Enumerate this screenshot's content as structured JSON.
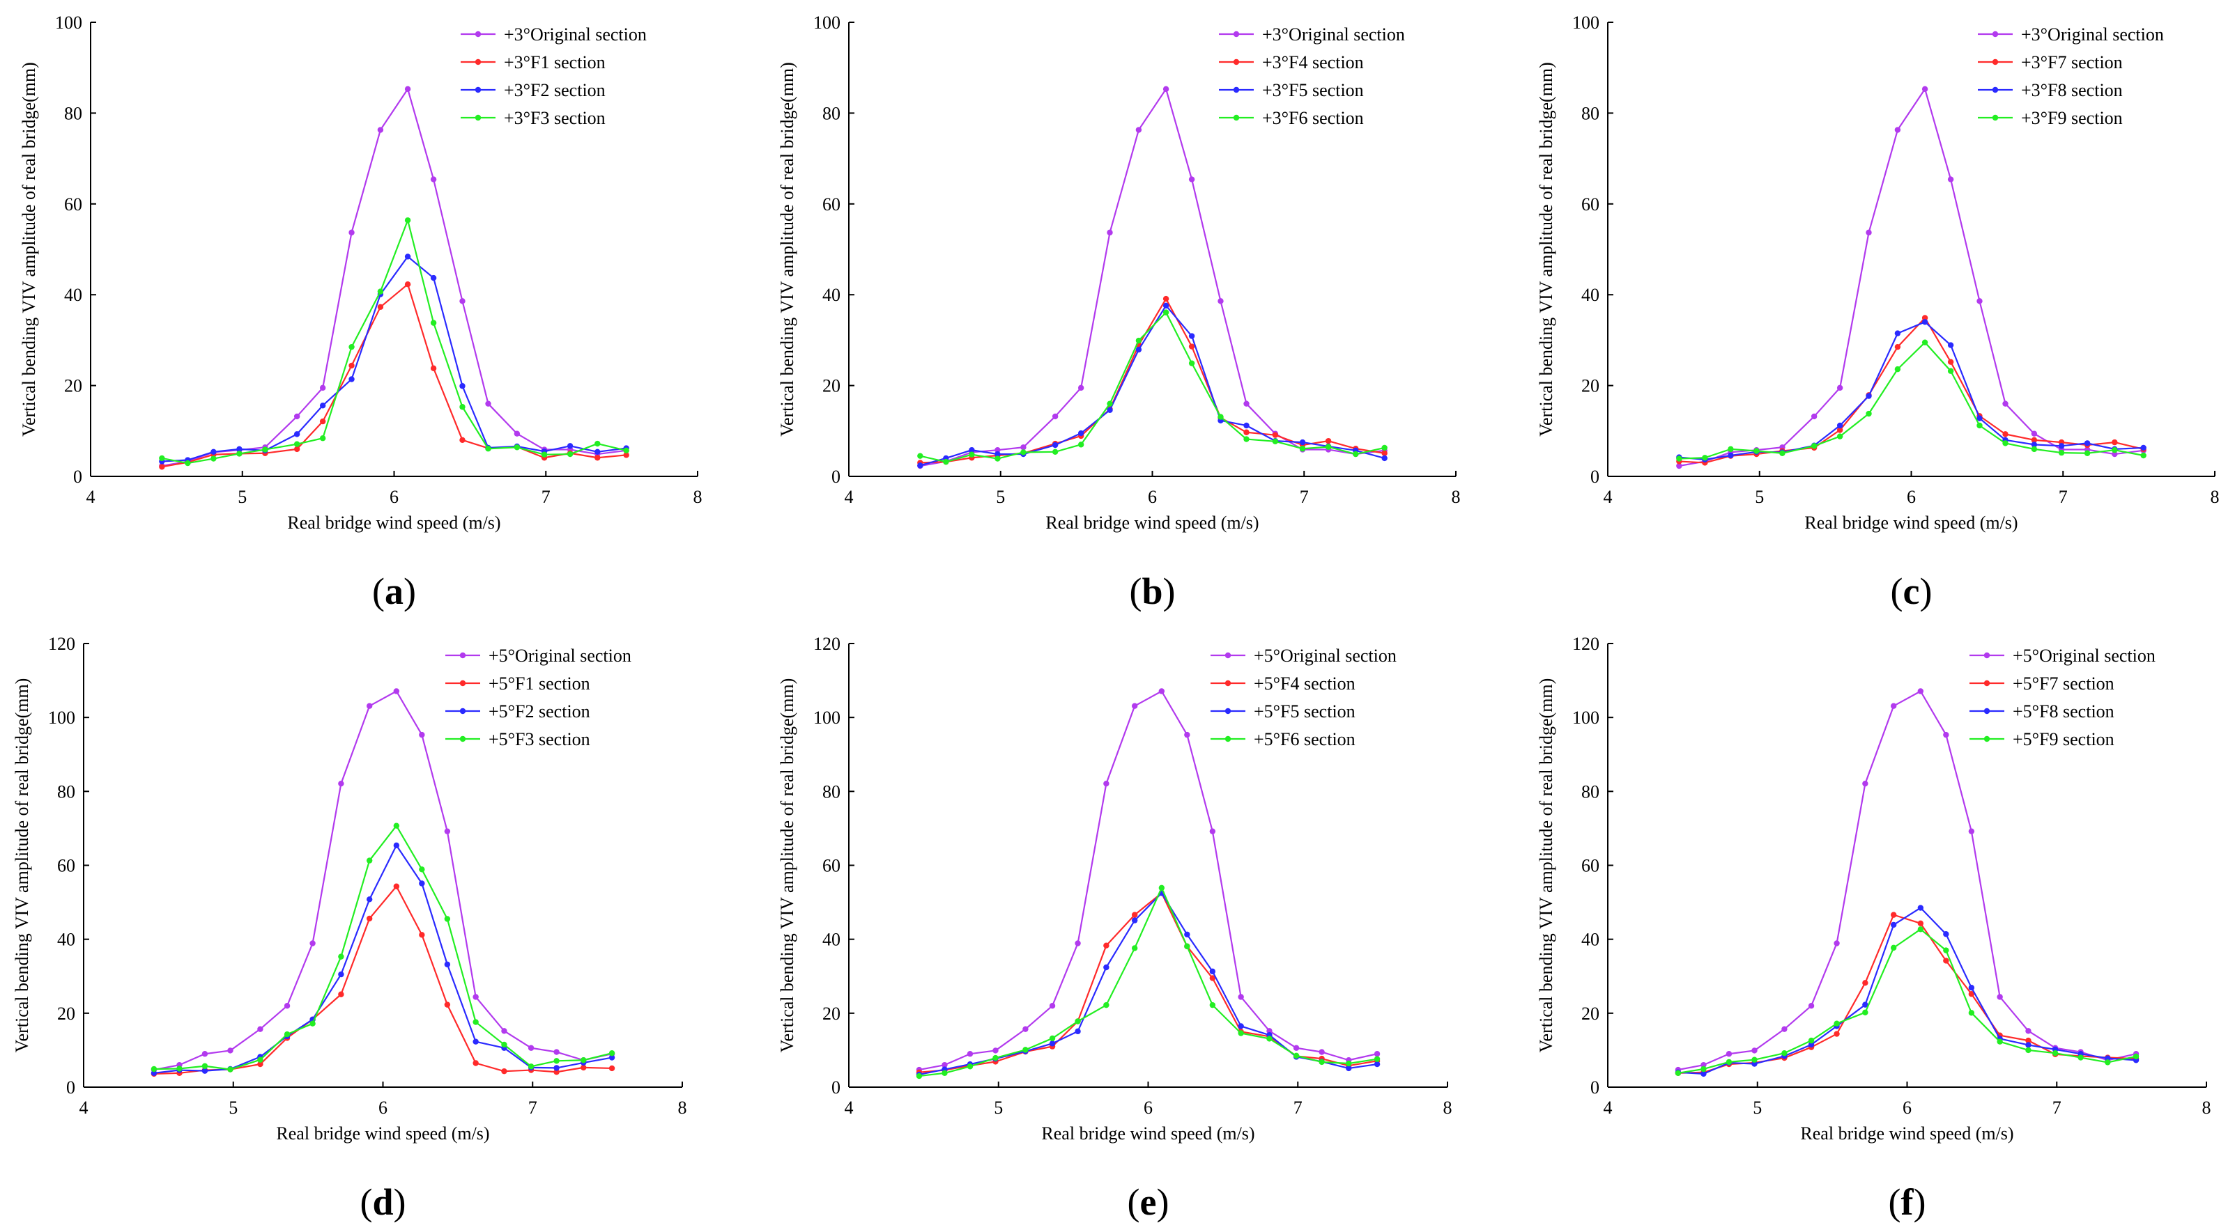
{
  "chart_data": [
    {
      "panel": "a",
      "type": "line",
      "xlabel": "Real bridge wind speed (m/s)",
      "ylabel": "Vertical bending VIV amplitude of real bridge(mm)",
      "xlim": [
        4,
        8
      ],
      "ylim": [
        0,
        100
      ],
      "xticks": [
        4,
        5,
        6,
        7,
        8
      ],
      "yticks": [
        0,
        20,
        40,
        60,
        80,
        100
      ],
      "x": [
        4.47,
        4.64,
        4.81,
        4.98,
        5.15,
        5.36,
        5.53,
        5.72,
        5.91,
        6.09,
        6.26,
        6.45,
        6.62,
        6.81,
        6.99,
        7.16,
        7.34,
        7.53
      ],
      "legend_position": "top-right",
      "series": [
        {
          "name": "+3°Original section",
          "color": "#B23AEE",
          "values": [
            2.3,
            3.3,
            5.3,
            5.8,
            6.4,
            13.2,
            19.5,
            53.7,
            76.3,
            85.3,
            65.4,
            38.6,
            16.0,
            9.4,
            5.9,
            5.9,
            4.9,
            5.7
          ]
        },
        {
          "name": "+3°F1 section",
          "color": "#FF2A2A",
          "values": [
            2.1,
            3.1,
            4.8,
            5.0,
            5.1,
            6.0,
            12.1,
            24.4,
            37.3,
            42.3,
            23.8,
            8.0,
            6.2,
            6.5,
            4.1,
            5.1,
            4.1,
            4.7
          ]
        },
        {
          "name": "+3°F2 section",
          "color": "#2A2AFF",
          "values": [
            3.3,
            3.6,
            5.4,
            6.0,
            5.7,
            9.3,
            15.6,
            21.4,
            40.1,
            48.4,
            43.7,
            19.9,
            6.3,
            6.6,
            5.5,
            6.7,
            5.4,
            6.2
          ]
        },
        {
          "name": "+3°F3 section",
          "color": "#22EE22",
          "values": [
            4.0,
            2.9,
            3.9,
            5.0,
            5.9,
            7.1,
            8.4,
            28.5,
            40.7,
            56.4,
            33.8,
            15.3,
            6.1,
            6.4,
            4.8,
            4.9,
            7.2,
            5.7
          ]
        }
      ]
    },
    {
      "panel": "b",
      "type": "line",
      "xlabel": "Real bridge wind speed (m/s)",
      "ylabel": "Vertical bending VIV amplitude of real bridge(mm)",
      "xlim": [
        4,
        8
      ],
      "ylim": [
        0,
        100
      ],
      "xticks": [
        4,
        5,
        6,
        7,
        8
      ],
      "yticks": [
        0,
        20,
        40,
        60,
        80,
        100
      ],
      "x": [
        4.47,
        4.64,
        4.81,
        4.98,
        5.15,
        5.36,
        5.53,
        5.72,
        5.91,
        6.09,
        6.26,
        6.45,
        6.62,
        6.81,
        6.99,
        7.16,
        7.34,
        7.53
      ],
      "legend_position": "top-right",
      "series": [
        {
          "name": "+3°Original section",
          "color": "#B23AEE",
          "values": [
            2.3,
            3.3,
            5.3,
            5.8,
            6.4,
            13.2,
            19.5,
            53.7,
            76.3,
            85.3,
            65.4,
            38.6,
            16.0,
            9.4,
            5.9,
            5.9,
            4.9,
            5.7
          ]
        },
        {
          "name": "+3°F4 section",
          "color": "#FF2A2A",
          "values": [
            3.0,
            3.2,
            4.1,
            4.6,
            5.1,
            7.2,
            8.9,
            14.8,
            28.9,
            39.1,
            28.6,
            12.9,
            9.7,
            9.1,
            6.9,
            7.8,
            6.1,
            5.1
          ]
        },
        {
          "name": "+3°F5 section",
          "color": "#2A2AFF",
          "values": [
            2.4,
            4.0,
            5.8,
            4.9,
            4.9,
            6.9,
            9.5,
            14.6,
            27.9,
            37.6,
            30.9,
            12.3,
            11.2,
            7.8,
            7.5,
            6.6,
            5.7,
            4.0
          ]
        },
        {
          "name": "+3°F6 section",
          "color": "#22EE22",
          "values": [
            4.5,
            3.2,
            4.8,
            3.9,
            5.3,
            5.4,
            7.0,
            16.0,
            29.9,
            36.1,
            24.9,
            13.1,
            8.2,
            7.7,
            6.1,
            6.5,
            4.9,
            6.3
          ]
        }
      ]
    },
    {
      "panel": "c",
      "type": "line",
      "xlabel": "Real bridge wind speed (m/s)",
      "ylabel": "Vertical bending VIV amplitude of real bridge(mm)",
      "xlim": [
        4,
        8
      ],
      "ylim": [
        0,
        100
      ],
      "xticks": [
        4,
        5,
        6,
        7,
        8
      ],
      "yticks": [
        0,
        20,
        40,
        60,
        80,
        100
      ],
      "x": [
        4.47,
        4.64,
        4.81,
        4.98,
        5.15,
        5.36,
        5.53,
        5.72,
        5.91,
        6.09,
        6.26,
        6.45,
        6.62,
        6.81,
        6.99,
        7.16,
        7.34,
        7.53
      ],
      "legend_position": "top-right",
      "series": [
        {
          "name": "+3°Original section",
          "color": "#B23AEE",
          "values": [
            2.3,
            3.3,
            5.3,
            5.8,
            6.4,
            13.2,
            19.5,
            53.7,
            76.3,
            85.3,
            65.4,
            38.6,
            16.0,
            9.4,
            5.9,
            5.9,
            4.9,
            5.7
          ]
        },
        {
          "name": "+3°F7 section",
          "color": "#FF2A2A",
          "values": [
            3.3,
            3.0,
            4.5,
            4.9,
            5.6,
            6.3,
            10.2,
            17.9,
            28.5,
            34.9,
            25.2,
            13.3,
            9.3,
            8.0,
            7.5,
            6.9,
            7.5,
            6.0
          ]
        },
        {
          "name": "+3°F8 section",
          "color": "#2A2AFF",
          "values": [
            4.2,
            3.7,
            4.6,
            5.4,
            5.3,
            6.8,
            11.2,
            17.7,
            31.5,
            34.0,
            28.9,
            12.8,
            8.0,
            7.0,
            6.7,
            7.3,
            6.0,
            6.3
          ]
        },
        {
          "name": "+3°F9 section",
          "color": "#22EE22",
          "values": [
            3.9,
            4.1,
            6.0,
            5.6,
            5.1,
            6.7,
            8.8,
            13.8,
            23.6,
            29.5,
            23.2,
            11.2,
            7.3,
            6.0,
            5.2,
            5.1,
            5.8,
            4.6
          ]
        }
      ]
    },
    {
      "panel": "d",
      "type": "line",
      "xlabel": "Real bridge wind speed (m/s)",
      "ylabel": "Vertical bending VIV amplitude of real bridge(mm)",
      "xlim": [
        4,
        8
      ],
      "ylim": [
        0,
        120
      ],
      "xticks": [
        4,
        5,
        6,
        7,
        8
      ],
      "yticks": [
        0,
        20,
        40,
        60,
        80,
        100,
        120
      ],
      "x": [
        4.47,
        4.64,
        4.81,
        4.98,
        5.18,
        5.36,
        5.53,
        5.72,
        5.91,
        6.09,
        6.26,
        6.43,
        6.62,
        6.81,
        6.99,
        7.16,
        7.34,
        7.53
      ],
      "legend_position": "top-right",
      "series": [
        {
          "name": "+5°Original section",
          "color": "#B23AEE",
          "values": [
            4.7,
            6.0,
            9.0,
            9.9,
            15.7,
            22.0,
            38.9,
            82.1,
            103.1,
            107.1,
            95.3,
            69.2,
            24.4,
            15.2,
            10.6,
            9.5,
            7.3,
            9.0
          ]
        },
        {
          "name": "+5°F1 section",
          "color": "#FF2A2A",
          "values": [
            3.6,
            3.8,
            4.6,
            4.8,
            6.2,
            13.3,
            18.3,
            25.1,
            45.6,
            54.3,
            41.2,
            22.3,
            6.5,
            4.3,
            4.6,
            4.1,
            5.3,
            5.1
          ]
        },
        {
          "name": "+5°F2 section",
          "color": "#2A2AFF",
          "values": [
            3.8,
            4.6,
            4.4,
            4.9,
            8.2,
            13.8,
            18.3,
            30.5,
            50.8,
            65.4,
            55.1,
            33.2,
            12.3,
            10.6,
            5.3,
            5.2,
            6.6,
            8.0
          ]
        },
        {
          "name": "+5°F3 section",
          "color": "#22EE22",
          "values": [
            4.9,
            5.0,
            5.7,
            4.8,
            7.4,
            14.3,
            17.2,
            35.3,
            61.3,
            70.7,
            58.9,
            45.5,
            17.6,
            11.5,
            5.6,
            7.1,
            7.3,
            9.2
          ]
        }
      ]
    },
    {
      "panel": "e",
      "type": "line",
      "xlabel": "Real bridge wind speed (m/s)",
      "ylabel": "Vertical bending VIV amplitude of real bridge(mm)",
      "xlim": [
        4,
        8
      ],
      "ylim": [
        0,
        120
      ],
      "xticks": [
        4,
        5,
        6,
        7,
        8
      ],
      "yticks": [
        0,
        20,
        40,
        60,
        80,
        100,
        120
      ],
      "x": [
        4.47,
        4.64,
        4.81,
        4.98,
        5.18,
        5.36,
        5.53,
        5.72,
        5.91,
        6.09,
        6.26,
        6.43,
        6.62,
        6.81,
        6.99,
        7.16,
        7.34,
        7.53
      ],
      "legend_position": "top-right",
      "series": [
        {
          "name": "+5°Original section",
          "color": "#B23AEE",
          "values": [
            4.7,
            6.0,
            9.0,
            9.9,
            15.7,
            22.0,
            38.9,
            82.1,
            103.1,
            107.1,
            95.3,
            69.2,
            24.4,
            15.2,
            10.6,
            9.5,
            7.3,
            9.0
          ]
        },
        {
          "name": "+5°F4 section",
          "color": "#FF2A2A",
          "values": [
            4.0,
            4.6,
            5.8,
            6.9,
            9.6,
            11.0,
            17.8,
            38.3,
            46.6,
            52.5,
            38.1,
            29.5,
            15.0,
            13.7,
            8.4,
            7.7,
            5.8,
            7.1
          ]
        },
        {
          "name": "+5°F5 section",
          "color": "#2A2AFF",
          "values": [
            3.4,
            4.8,
            6.2,
            7.7,
            9.7,
            11.8,
            15.1,
            32.4,
            45.1,
            52.5,
            41.3,
            31.3,
            16.5,
            14.1,
            8.2,
            6.9,
            5.1,
            6.2
          ]
        },
        {
          "name": "+5°F6 section",
          "color": "#22EE22",
          "values": [
            3.0,
            3.8,
            5.6,
            7.9,
            10.1,
            13.2,
            17.8,
            22.2,
            37.6,
            53.9,
            38.1,
            22.2,
            14.6,
            13.1,
            8.5,
            6.8,
            6.4,
            7.6
          ]
        }
      ]
    },
    {
      "panel": "f",
      "type": "line",
      "xlabel": "Real bridge wind speed (m/s)",
      "ylabel": "Vertical bending VIV amplitude of real bridge(mm)",
      "xlim": [
        4,
        8
      ],
      "ylim": [
        0,
        120
      ],
      "xticks": [
        4,
        5,
        6,
        7,
        8
      ],
      "yticks": [
        0,
        20,
        40,
        60,
        80,
        100,
        120
      ],
      "x": [
        4.47,
        4.64,
        4.81,
        4.98,
        5.18,
        5.36,
        5.53,
        5.72,
        5.91,
        6.09,
        6.26,
        6.43,
        6.62,
        6.81,
        6.99,
        7.16,
        7.34,
        7.53
      ],
      "legend_position": "top-right",
      "series": [
        {
          "name": "+5°Original section",
          "color": "#B23AEE",
          "values": [
            4.7,
            6.0,
            9.0,
            9.9,
            15.7,
            22.0,
            38.9,
            82.1,
            103.1,
            107.1,
            95.3,
            69.2,
            24.4,
            15.2,
            10.6,
            9.5,
            7.3,
            9.0
          ]
        },
        {
          "name": "+5°F7 section",
          "color": "#FF2A2A",
          "values": [
            3.8,
            4.0,
            6.2,
            6.6,
            7.9,
            10.8,
            14.4,
            28.2,
            46.6,
            44.3,
            34.2,
            25.2,
            14.0,
            12.6,
            8.9,
            8.4,
            8.0,
            7.7
          ]
        },
        {
          "name": "+5°F8 section",
          "color": "#2A2AFF",
          "values": [
            4.0,
            3.6,
            6.6,
            6.3,
            8.4,
            11.5,
            16.5,
            22.3,
            43.9,
            48.5,
            41.4,
            26.9,
            13.1,
            11.4,
            10.2,
            9.0,
            7.8,
            7.3
          ]
        },
        {
          "name": "+5°F9 section",
          "color": "#22EE22",
          "values": [
            3.8,
            4.9,
            6.8,
            7.4,
            9.2,
            12.6,
            17.2,
            20.2,
            37.7,
            42.7,
            37.0,
            20.1,
            12.3,
            10.0,
            9.2,
            8.0,
            6.7,
            8.3
          ]
        }
      ]
    }
  ]
}
